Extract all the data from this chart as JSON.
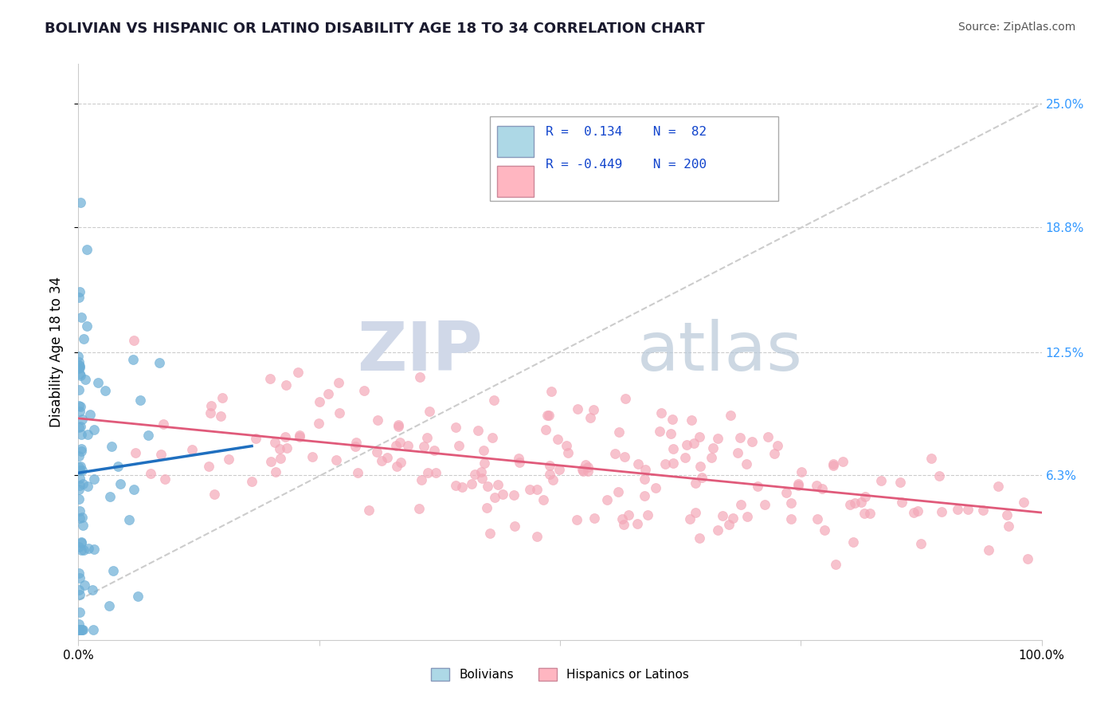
{
  "title": "BOLIVIAN VS HISPANIC OR LATINO DISABILITY AGE 18 TO 34 CORRELATION CHART",
  "source": "Source: ZipAtlas.com",
  "ylabel": "Disability Age 18 to 34",
  "xlim": [
    0.0,
    1.0
  ],
  "ylim": [
    -0.02,
    0.27
  ],
  "bolivians_R": 0.134,
  "bolivians_N": 82,
  "hispanics_R": -0.449,
  "hispanics_N": 200,
  "blue_color": "#6baed6",
  "blue_line": "#1f6fbf",
  "pink_color": "#f4a8b8",
  "pink_line": "#e05a7a",
  "legend_box_blue": "#add8e6",
  "legend_box_pink": "#ffb6c1",
  "watermark_zip": "ZIP",
  "watermark_atlas": "atlas",
  "watermark_color": "#d0d8e8",
  "background": "#ffffff",
  "grid_color": "#cccccc",
  "ref_line_color": "#cccccc",
  "title_color": "#1a1a2e",
  "source_color": "#555555",
  "right_tick_color": "#3399ff"
}
